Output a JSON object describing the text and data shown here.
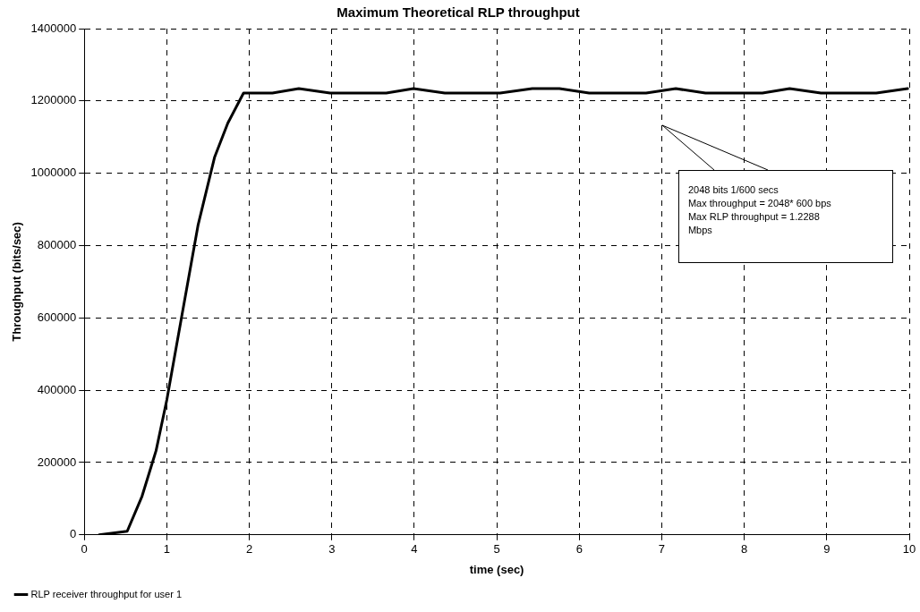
{
  "chart_data": {
    "type": "line",
    "title": "Maximum Theoretical RLP throughput",
    "xlabel": "time (sec)",
    "ylabel": "Throughput (bits/sec)",
    "series": [
      {
        "name": "RLP receiver throughput for user 1",
        "color": "#000000",
        "x": [
          0.18,
          0.52,
          0.7,
          0.87,
          1.0,
          1.18,
          1.38,
          1.58,
          1.74,
          1.93,
          2.28,
          2.6,
          2.98,
          3.66,
          3.99,
          4.37,
          5.04,
          5.43,
          5.76,
          6.12,
          6.81,
          7.17,
          7.53,
          8.22,
          8.55,
          8.93,
          9.6,
          9.98
        ],
        "values": [
          0,
          10000,
          107000,
          233000,
          373000,
          603000,
          858000,
          1045000,
          1139000,
          1222000,
          1222000,
          1234000,
          1222000,
          1222000,
          1234000,
          1222000,
          1222000,
          1234000,
          1234000,
          1222000,
          1222000,
          1234000,
          1222000,
          1222000,
          1234000,
          1222000,
          1222000,
          1234000
        ]
      }
    ],
    "xlim": [
      0,
      10
    ],
    "xticks": [
      0,
      1,
      2,
      3,
      4,
      5,
      6,
      7,
      8,
      9,
      10
    ],
    "ylim": [
      0,
      1400000
    ],
    "yticks": [
      0,
      200000,
      400000,
      600000,
      800000,
      1000000,
      1200000,
      1400000
    ],
    "grid": true,
    "legend": "bottom",
    "marker": "none",
    "line_style": "solid",
    "annotations": [
      "2048 bits 1/600 secs\nMax throughput = 2048* 600 bps\nMax RLP throughput = 1.2288\nMbps"
    ]
  }
}
